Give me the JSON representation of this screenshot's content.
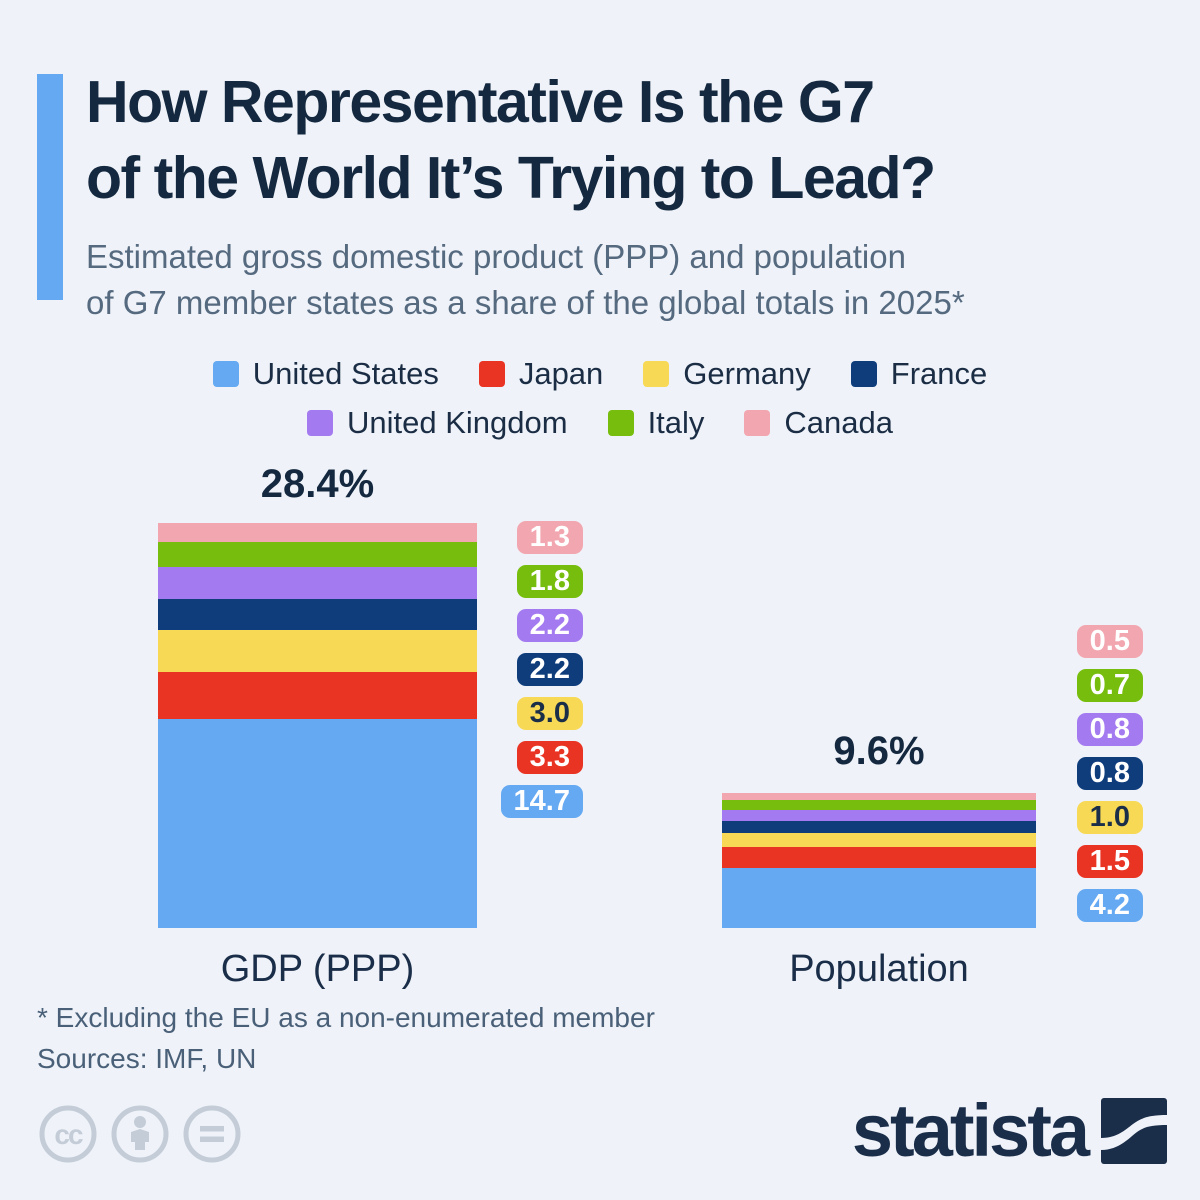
{
  "header": {
    "title_line1": "How Representative Is the G7",
    "title_line2": "of the World It’s Trying to Lead?",
    "subtitle_line1": "Estimated gross domestic product (PPP) and population",
    "subtitle_line2": "of G7 member states as a share of the global totals in 2025*"
  },
  "legend": {
    "rows": [
      [
        0,
        1,
        2,
        3
      ],
      [
        4,
        5,
        6
      ]
    ]
  },
  "chart_data": {
    "type": "bar",
    "stacked": true,
    "unit": "% share of global total",
    "categories": [
      "GDP (PPP)",
      "Population"
    ],
    "totals": [
      "28.4%",
      "9.6%"
    ],
    "legend_position": "top",
    "grid": false,
    "series": [
      {
        "name": "United States",
        "color": "#64A9F2",
        "badge_text_color": "#FFFFFF",
        "values": [
          14.7,
          4.2
        ]
      },
      {
        "name": "Japan",
        "color": "#E93323",
        "badge_text_color": "#FFFFFF",
        "values": [
          3.3,
          1.5
        ]
      },
      {
        "name": "Germany",
        "color": "#F7D956",
        "badge_text_color": "#1B2E49",
        "values": [
          3.0,
          1.0
        ]
      },
      {
        "name": "France",
        "color": "#0F3D7C",
        "badge_text_color": "#FFFFFF",
        "values": [
          2.2,
          0.8
        ]
      },
      {
        "name": "United Kingdom",
        "color": "#A47AF0",
        "badge_text_color": "#FFFFFF",
        "values": [
          2.2,
          0.8
        ]
      },
      {
        "name": "Italy",
        "color": "#77BD0D",
        "badge_text_color": "#FFFFFF",
        "values": [
          1.8,
          0.7
        ]
      },
      {
        "name": "Canada",
        "color": "#F2A6AF",
        "badge_text_color": "#FFFFFF",
        "values": [
          1.3,
          0.5
        ]
      }
    ]
  },
  "footer": {
    "footnote": "* Excluding the EU as a non-enumerated member",
    "sources": "Sources: IMF, UN"
  },
  "branding": {
    "logo_text": "statista"
  },
  "colors": {
    "background": "#EFF3F9",
    "accent_blue": "#64A9F2",
    "title_navy": "#14283F",
    "subtitle_slate": "#55697F",
    "brand_navy": "#1A2D49",
    "cc_icon_gray": "#C3CCD7"
  }
}
